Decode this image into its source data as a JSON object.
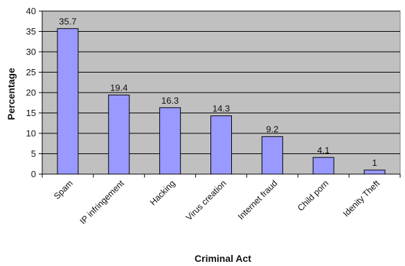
{
  "chart_data": {
    "type": "bar",
    "categories": [
      "Spam",
      "IP infringement",
      "Hacking",
      "Virus creation",
      "Internet fraud",
      "Child porn",
      "Idenity Theft"
    ],
    "values": [
      35.7,
      19.4,
      16.3,
      14.3,
      9.2,
      4.1,
      1
    ],
    "value_labels": [
      "35.7",
      "19.4",
      "16.3",
      "14.3",
      "9.2",
      "4.1",
      "1"
    ],
    "yticks": [
      "0",
      "5",
      "10",
      "15",
      "20",
      "25",
      "30",
      "35",
      "40"
    ],
    "xlabel": "Criminal Act",
    "ylabel": "Percentage",
    "ylim": [
      0,
      40
    ],
    "grid": true,
    "legend": "none",
    "colors": {
      "bar_fill": "#9999ff",
      "bar_stroke": "#000000",
      "plot_background": "#c0c0c0",
      "gridline": "#000000"
    }
  }
}
